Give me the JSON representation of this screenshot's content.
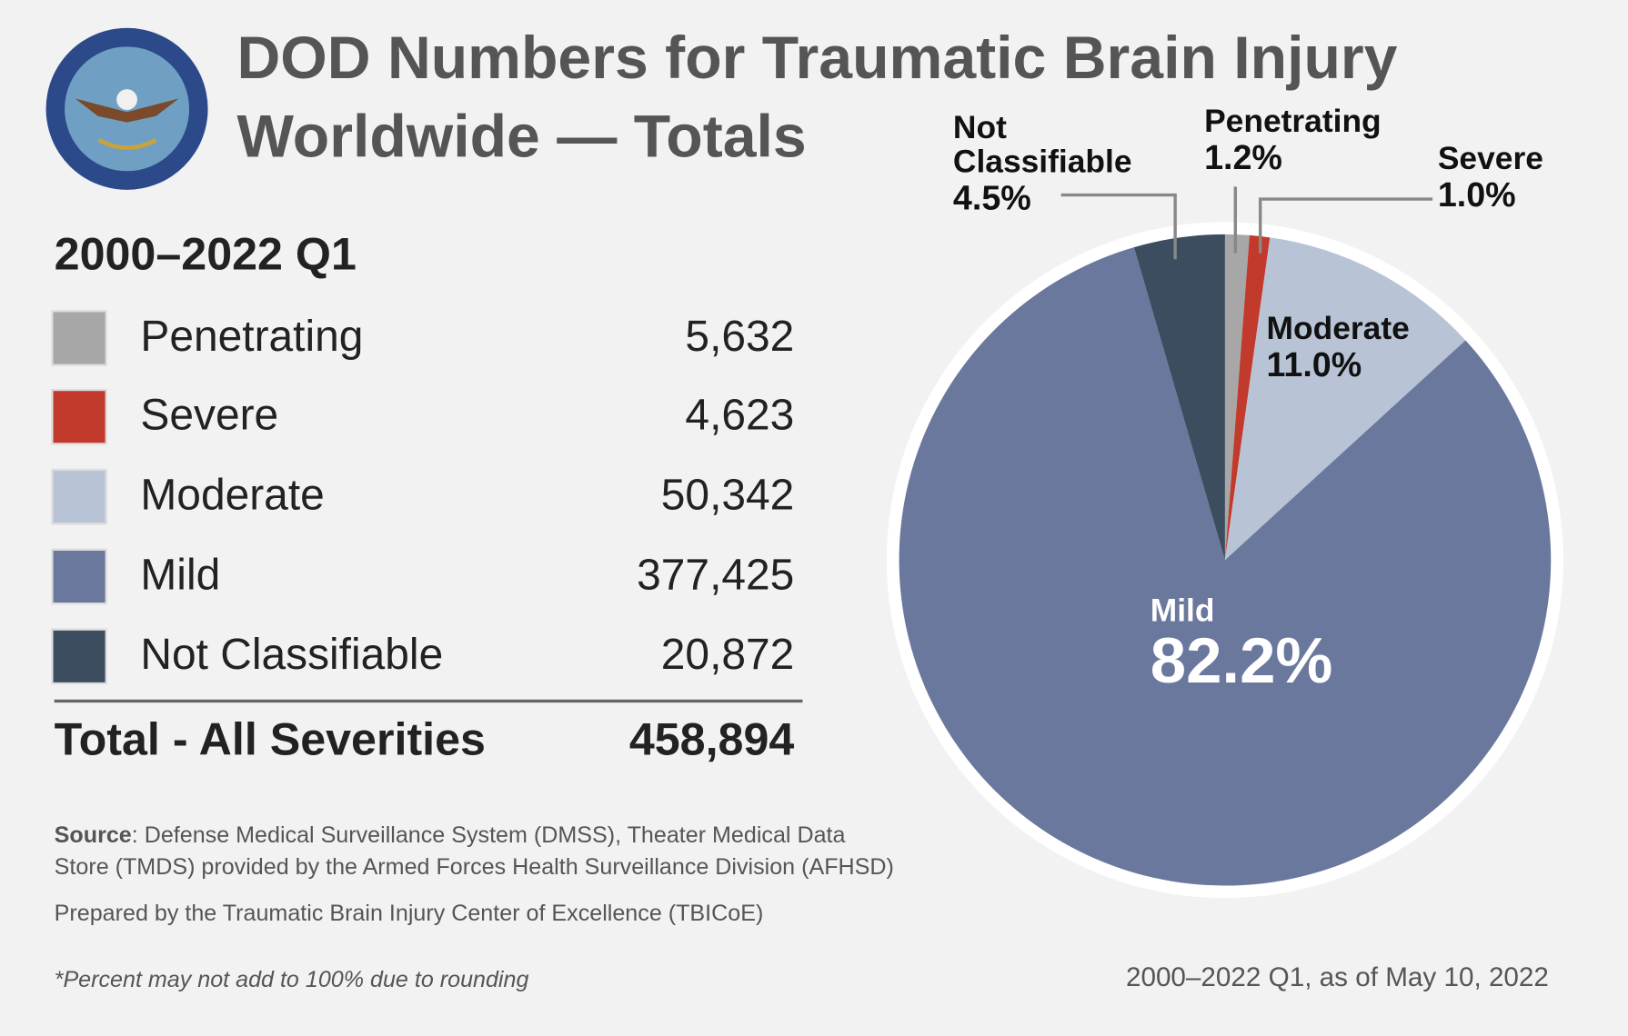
{
  "title": [
    "DOD Numbers for Traumatic Brain Injury",
    "Worldwide — Totals"
  ],
  "subtitle": "2000–2022 Q1",
  "chart_data": {
    "type": "pie",
    "categories": [
      "Penetrating",
      "Severe",
      "Moderate",
      "Mild",
      "Not Classifiable"
    ],
    "values": [
      1.2,
      1.0,
      11.0,
      82.2,
      4.5
    ],
    "value_labels": [
      "1.2%",
      "1.0%",
      "11.0%",
      "82.2%",
      "4.5%"
    ],
    "colors": [
      "#a7a7a7",
      "#c23a2c",
      "#b8c4d5",
      "#6b789d",
      "#3c4d60"
    ],
    "counts": [
      5632,
      4623,
      50342,
      377425,
      20872
    ],
    "count_labels": [
      "5,632",
      "4,623",
      "50,342",
      "377,425",
      "20,872"
    ],
    "total_label": "Total - All Severities",
    "total": 458894,
    "total_value_label": "458,894"
  },
  "source_label": "Source",
  "source_lines": [
    ": Defense Medical Surveillance System (DMSS), Theater Medical Data",
    "Store (TMDS) provided by the Armed Forces Health Surveillance Division (AFHSD)"
  ],
  "prepared": "Prepared by the Traumatic Brain Injury Center of Excellence (TBICoE)",
  "footnote": "*Percent may not add to 100% due to rounding",
  "date_note": "2000–2022 Q1, as of May 10, 2022"
}
